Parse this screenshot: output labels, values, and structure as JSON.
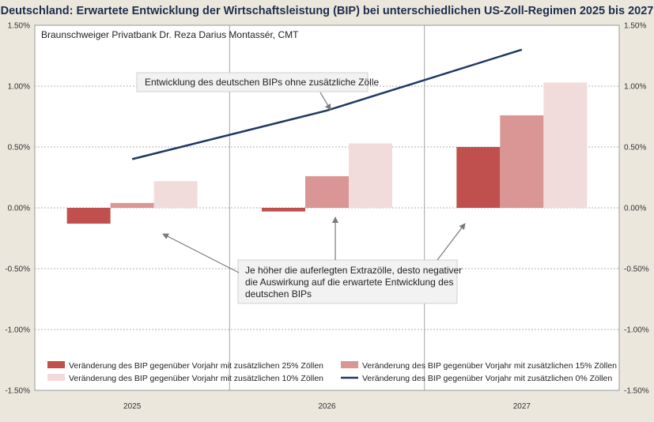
{
  "chart_data": {
    "type": "bar",
    "title": "Deutschland: Erwartete Entwicklung der Wirtschaftsleistung (BIP) bei unterschiedlichen US-Zoll-Regimen 2025 bis 2027",
    "source": "Braunschweiger Privatbank Dr. Reza Darius Montassér, CMT",
    "categories": [
      "2025",
      "2026",
      "2027"
    ],
    "ylim": [
      -0.015,
      0.015
    ],
    "yticks": [
      "-1.50%",
      "-1.00%",
      "-0.50%",
      "0.00%",
      "0.50%",
      "1.00%",
      "1.50%"
    ],
    "series": [
      {
        "name": "Veränderung des BIP gegenüber Vorjahr mit zusätzlichen 25% Zöllen",
        "kind": "bar",
        "color": "#c0504d",
        "values": [
          -0.0013,
          -0.0003,
          0.005
        ]
      },
      {
        "name": "Veränderung des BIP gegenüber Vorjahr mit zusätzlichen 15% Zöllen",
        "kind": "bar",
        "color": "#d99694",
        "values": [
          0.0004,
          0.0026,
          0.0076
        ]
      },
      {
        "name": "Veränderung des BIP gegenüber Vorjahr mit zusätzlichen 10% Zöllen",
        "kind": "bar",
        "color": "#f2dcdb",
        "values": [
          0.0022,
          0.0053,
          0.0103
        ]
      },
      {
        "name": "Veränderung des BIP gegenüber Vorjahr mit zusätzlichen 0% Zöllen",
        "kind": "line",
        "color": "#1f3864",
        "values": [
          0.004,
          0.008,
          0.013
        ]
      }
    ],
    "annotations": [
      {
        "id": "line",
        "text": [
          "Entwicklung des deutschen BIPs ohne zusätzliche Zölle"
        ]
      },
      {
        "id": "note",
        "text": [
          "Je höher die auferlegten Extrazölle, desto negativer",
          "die Auswirkung auf die erwartete Entwicklung des",
          "deutschen BIPs"
        ]
      }
    ]
  }
}
